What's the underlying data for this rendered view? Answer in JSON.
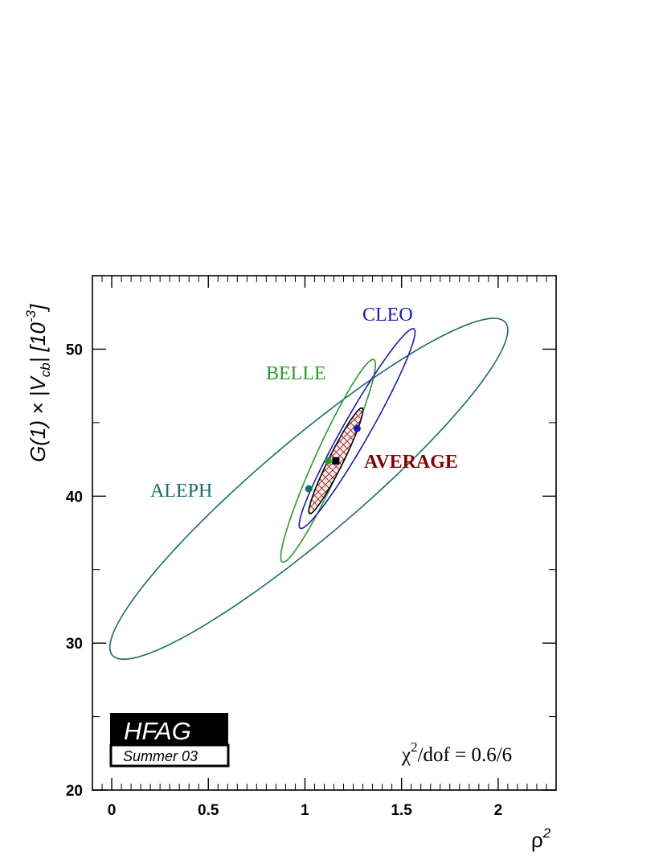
{
  "chart_data": {
    "type": "scatter",
    "xlabel": "ρ",
    "xlabel_sup": "2",
    "ylabel": "G(1) × |V",
    "ylabel_sub": "cb",
    "ylabel_mid": "| [10",
    "ylabel_sup": "-3",
    "ylabel_end": "]",
    "xlim": [
      -0.1,
      2.3
    ],
    "ylim": [
      20,
      55
    ],
    "xticks": [
      0,
      0.5,
      1,
      1.5,
      2
    ],
    "xtick_labels": [
      "0",
      "0.5",
      "1",
      "1.5",
      "2"
    ],
    "yticks": [
      20,
      30,
      40,
      50
    ],
    "ytick_labels": [
      "20",
      "30",
      "40",
      "50"
    ],
    "grid": false,
    "series": [
      {
        "name": "ALEPH",
        "color": "#1a6b6b",
        "center": [
          1.02,
          40.5
        ],
        "ellipse": {
          "sx": 1.03,
          "sy": 11.6,
          "rho": 0.93
        }
      },
      {
        "name": "BELLE",
        "color": "#2a9a2a",
        "center": [
          1.12,
          42.4
        ],
        "ellipse": {
          "sx": 0.245,
          "sy": 6.9,
          "rho": 0.95
        }
      },
      {
        "name": "CLEO",
        "color": "#1a1aaa",
        "center": [
          1.27,
          44.6
        ],
        "ellipse": {
          "sx": 0.3,
          "sy": 6.8,
          "rho": 0.965
        }
      },
      {
        "name": "AVERAGE",
        "color": "#880000",
        "center": [
          1.16,
          42.4
        ],
        "ellipse": {
          "sx": 0.14,
          "sy": 3.6,
          "rho": 0.955
        },
        "hatched": true
      }
    ],
    "annotations": {
      "chi2_prefix": "χ",
      "chi2_sup": "2",
      "chi2_text": "/dof = 0.6/6"
    },
    "logo": {
      "main": "HFAG",
      "sub": "Summer 03"
    }
  }
}
